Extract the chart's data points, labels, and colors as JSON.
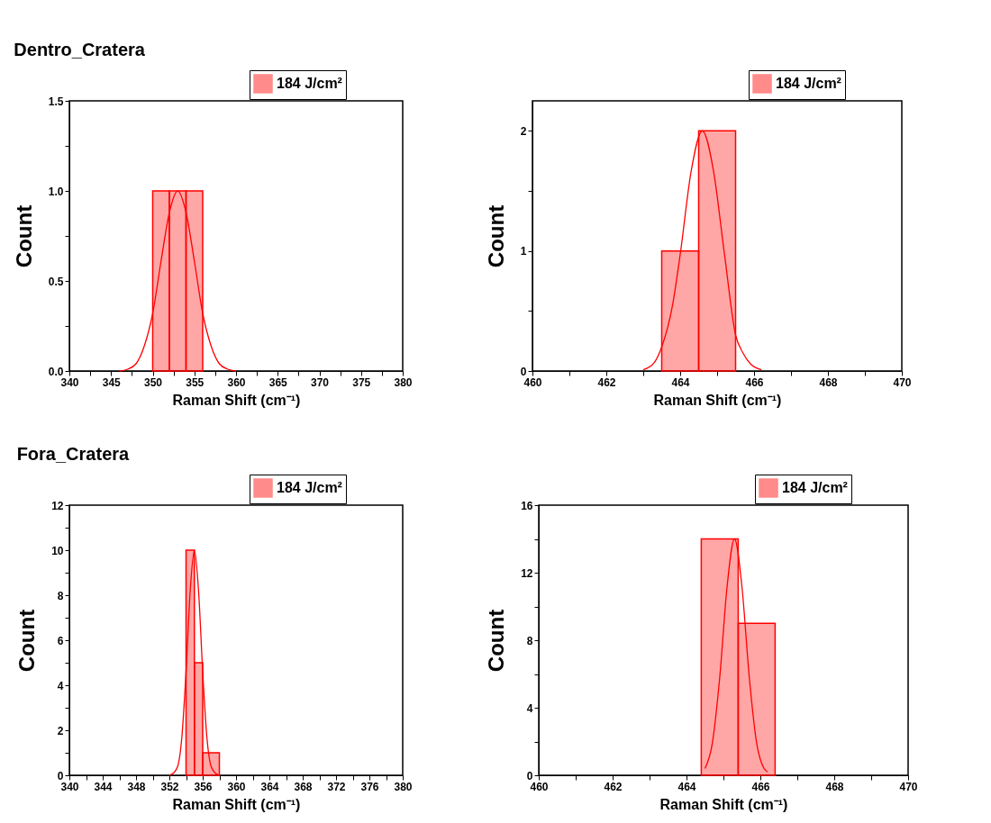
{
  "chart_data": [
    {
      "type": "histogram",
      "title": "Dentro_Cratera",
      "xlabel": "Raman Shift (cm⁻¹)",
      "ylabel": "Count",
      "legend": "top right",
      "grid": false,
      "xlim": [
        340,
        380
      ],
      "ylim": [
        0,
        1.5
      ],
      "xticks": [
        340,
        {
          "value": 342.5,
          "label": null
        },
        345,
        {
          "value": 347.5,
          "label": null
        },
        350,
        {
          "value": 352.5,
          "label": null
        },
        355,
        {
          "value": 357.5,
          "label": null
        },
        360,
        {
          "value": 362.5,
          "label": null
        },
        365,
        {
          "value": 367.5,
          "label": null
        },
        370,
        {
          "value": 372.5,
          "label": null
        },
        375,
        {
          "value": 377.5,
          "label": null
        },
        380
      ],
      "yticks": [
        {
          "value": 0,
          "label": "0.0"
        },
        {
          "value": 0.25,
          "label": null
        },
        0.5,
        {
          "value": 0.75,
          "label": null
        },
        {
          "value": 1,
          "label": "1.0"
        },
        {
          "value": 1.25,
          "label": null
        },
        1.5
      ],
      "series": [
        {
          "name": "184 J/cm²",
          "type": "histogram",
          "color": "#ff0000",
          "bins": [
            350,
            352,
            354,
            356
          ],
          "values": [
            1,
            1,
            1
          ]
        },
        {
          "type": "line",
          "color": "#ff0000",
          "x": [
            346,
            347,
            348,
            349,
            350,
            351,
            352,
            353,
            354,
            355,
            356,
            357,
            358,
            359,
            360
          ],
          "values": [
            0,
            0.01,
            0.04,
            0.14,
            0.32,
            0.61,
            0.88,
            1,
            0.88,
            0.61,
            0.32,
            0.14,
            0.04,
            0.01,
            0
          ]
        }
      ]
    },
    {
      "type": "histogram",
      "xlabel": "Raman Shift (cm⁻¹)",
      "ylabel": "Count",
      "legend": "top right",
      "grid": false,
      "xlim": [
        460,
        470
      ],
      "ylim": [
        0,
        2.25
      ],
      "xticks": [
        460,
        {
          "value": 461,
          "label": null
        },
        462,
        {
          "value": 463,
          "label": null
        },
        464,
        {
          "value": 465,
          "label": null
        },
        466,
        {
          "value": 467,
          "label": null
        },
        468,
        {
          "value": 469,
          "label": null
        },
        470
      ],
      "yticks": [
        0,
        {
          "value": 0.5,
          "label": null
        },
        1,
        {
          "value": 1.5,
          "label": null
        },
        2
      ],
      "series": [
        {
          "name": "184 J/cm²",
          "type": "histogram",
          "color": "#ff0000",
          "bins": [
            463.5,
            464.5,
            465.5
          ],
          "values": [
            1,
            2
          ]
        },
        {
          "type": "line",
          "color": "#ff0000",
          "x": [
            463,
            463.3,
            463.5,
            463.8,
            464,
            464.3,
            464.6,
            464.9,
            465.2,
            465.5,
            465.7,
            465.9,
            466.2
          ],
          "values": [
            0.01,
            0.07,
            0.2,
            0.56,
            0.97,
            1.67,
            2,
            1.67,
            0.97,
            0.3,
            0.15,
            0.06,
            0.01
          ]
        }
      ]
    },
    {
      "type": "histogram",
      "title": "Fora_Cratera",
      "xlabel": "Raman Shift (cm⁻¹)",
      "ylabel": "Count",
      "legend": "top right",
      "grid": false,
      "xlim": [
        340,
        380
      ],
      "ylim": [
        0,
        12
      ],
      "xticks": [
        340,
        {
          "value": 342,
          "label": null
        },
        344,
        {
          "value": 346,
          "label": null
        },
        348,
        {
          "value": 350,
          "label": null
        },
        352,
        {
          "value": 354,
          "label": null
        },
        356,
        {
          "value": 358,
          "label": null
        },
        360,
        {
          "value": 362,
          "label": null
        },
        364,
        {
          "value": 366,
          "label": null
        },
        368,
        {
          "value": 370,
          "label": null
        },
        372,
        {
          "value": 374,
          "label": null
        },
        376,
        {
          "value": 378,
          "label": null
        },
        380
      ],
      "yticks": [
        0,
        {
          "value": 1,
          "label": null
        },
        2,
        {
          "value": 3,
          "label": null
        },
        4,
        {
          "value": 5,
          "label": null
        },
        6,
        {
          "value": 7,
          "label": null
        },
        8,
        {
          "value": 9,
          "label": null
        },
        10,
        {
          "value": 11,
          "label": null
        },
        12
      ],
      "series": [
        {
          "name": "184 J/cm²",
          "type": "histogram",
          "color": "#ff0000",
          "bins": [
            354,
            355,
            356,
            358
          ],
          "values": [
            10,
            5,
            1
          ]
        },
        {
          "type": "line",
          "color": "#ff0000",
          "x": [
            352,
            352.5,
            353,
            353.5,
            354,
            354.5,
            355,
            355.5,
            356,
            356.5,
            357,
            357.5,
            358
          ],
          "values": [
            0,
            0.1,
            0.4,
            1.7,
            4.6,
            8.2,
            10,
            8.2,
            4.6,
            1.7,
            0.4,
            0.1,
            0
          ]
        }
      ]
    },
    {
      "type": "histogram",
      "xlabel": "Raman Shift (cm⁻¹)",
      "ylabel": "Count",
      "legend": "top right",
      "grid": false,
      "xlim": [
        460,
        470
      ],
      "ylim": [
        0,
        16
      ],
      "xticks": [
        460,
        {
          "value": 461,
          "label": null
        },
        462,
        {
          "value": 463,
          "label": null
        },
        464,
        {
          "value": 465,
          "label": null
        },
        466,
        {
          "value": 467,
          "label": null
        },
        468,
        {
          "value": 469,
          "label": null
        },
        470
      ],
      "yticks": [
        0,
        {
          "value": 2,
          "label": null
        },
        4,
        {
          "value": 6,
          "label": null
        },
        8,
        {
          "value": 10,
          "label": null
        },
        12,
        {
          "value": 14,
          "label": null
        },
        16
      ],
      "series": [
        {
          "name": "184 J/cm²",
          "type": "histogram",
          "color": "#ff0000",
          "bins": [
            464.4,
            465.4,
            466.4
          ],
          "values": [
            14,
            9
          ]
        },
        {
          "type": "line",
          "color": "#ff0000",
          "x": [
            464.5,
            464.7,
            464.9,
            465.1,
            465.3,
            465.5,
            465.7,
            465.9,
            466.1,
            466.2
          ],
          "values": [
            0.4,
            1.9,
            5.8,
            11.2,
            14,
            11.2,
            5.8,
            1.9,
            0.4,
            0.2
          ]
        }
      ]
    }
  ]
}
